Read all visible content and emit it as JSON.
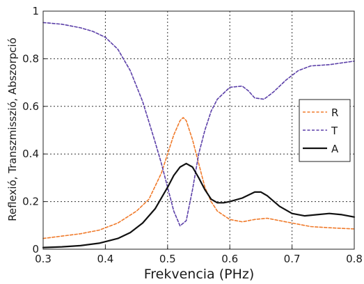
{
  "chart_data": {
    "type": "line",
    "title": "",
    "xlabel": "Frekvencia (PHz)",
    "ylabel": "Reflexió, Transzmisszió, Abszorpció",
    "xlim": [
      0.3,
      0.8
    ],
    "ylim": [
      0,
      1
    ],
    "xticks": [
      "0.3",
      "0.4",
      "0.5",
      "0.6",
      "0.7",
      "0.8"
    ],
    "yticks": [
      "0",
      "0.2",
      "0.4",
      "0.6",
      "0.8",
      "1"
    ],
    "grid": true,
    "legend_position": "right",
    "series": [
      {
        "name": "R",
        "color": "#f07a2a",
        "dash": "dashed",
        "x": [
          0.3,
          0.33,
          0.36,
          0.39,
          0.42,
          0.45,
          0.47,
          0.49,
          0.5,
          0.51,
          0.52,
          0.525,
          0.53,
          0.54,
          0.55,
          0.56,
          0.57,
          0.58,
          0.6,
          0.62,
          0.64,
          0.66,
          0.68,
          0.7,
          0.73,
          0.76,
          0.8
        ],
        "values": [
          0.045,
          0.055,
          0.065,
          0.08,
          0.11,
          0.16,
          0.21,
          0.32,
          0.4,
          0.48,
          0.54,
          0.553,
          0.54,
          0.46,
          0.36,
          0.26,
          0.2,
          0.16,
          0.125,
          0.115,
          0.125,
          0.13,
          0.12,
          0.11,
          0.095,
          0.09,
          0.085
        ]
      },
      {
        "name": "T",
        "color": "#5b3fa8",
        "dash": "dashed",
        "x": [
          0.3,
          0.33,
          0.36,
          0.38,
          0.4,
          0.42,
          0.44,
          0.46,
          0.48,
          0.49,
          0.5,
          0.51,
          0.52,
          0.53,
          0.54,
          0.55,
          0.56,
          0.57,
          0.58,
          0.6,
          0.62,
          0.63,
          0.64,
          0.655,
          0.67,
          0.69,
          0.71,
          0.73,
          0.76,
          0.8
        ],
        "values": [
          0.952,
          0.945,
          0.93,
          0.915,
          0.89,
          0.84,
          0.75,
          0.62,
          0.45,
          0.36,
          0.26,
          0.16,
          0.098,
          0.12,
          0.25,
          0.4,
          0.5,
          0.58,
          0.63,
          0.68,
          0.685,
          0.665,
          0.635,
          0.63,
          0.66,
          0.71,
          0.75,
          0.77,
          0.775,
          0.79
        ]
      },
      {
        "name": "A",
        "color": "#111111",
        "dash": "solid",
        "x": [
          0.3,
          0.33,
          0.36,
          0.39,
          0.42,
          0.44,
          0.46,
          0.48,
          0.5,
          0.51,
          0.52,
          0.53,
          0.54,
          0.55,
          0.56,
          0.57,
          0.58,
          0.59,
          0.6,
          0.62,
          0.64,
          0.65,
          0.66,
          0.68,
          0.7,
          0.72,
          0.74,
          0.76,
          0.78,
          0.8
        ],
        "values": [
          0.007,
          0.01,
          0.015,
          0.025,
          0.045,
          0.07,
          0.11,
          0.17,
          0.26,
          0.31,
          0.345,
          0.36,
          0.345,
          0.3,
          0.25,
          0.21,
          0.195,
          0.195,
          0.2,
          0.215,
          0.24,
          0.24,
          0.225,
          0.18,
          0.15,
          0.14,
          0.145,
          0.15,
          0.145,
          0.135
        ]
      }
    ]
  }
}
